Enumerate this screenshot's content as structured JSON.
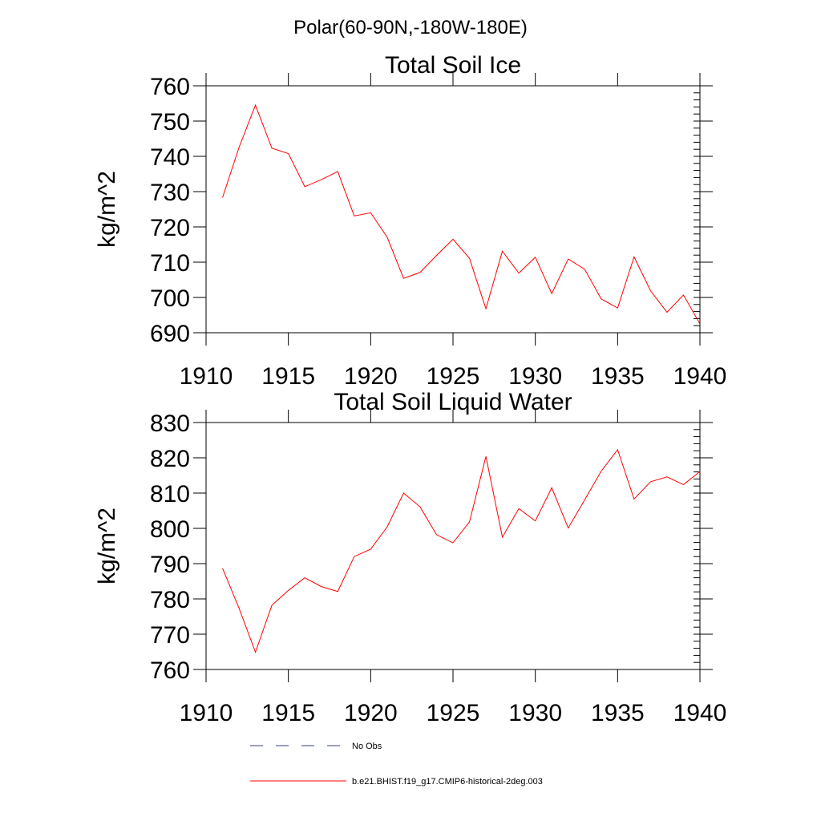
{
  "suptitle": "Polar(60-90N,-180W-180E)",
  "colors": {
    "series": "#ff0000",
    "axes": "#000000",
    "obs": "#3a3f8a"
  },
  "chart_data": [
    {
      "type": "line",
      "title": "Total Soil Ice",
      "ylabel": "kg/m^2",
      "xlabel": "",
      "xlim": [
        1910,
        1940
      ],
      "ylim": [
        690,
        760
      ],
      "xticks": [
        1910,
        1915,
        1920,
        1925,
        1930,
        1935,
        1940
      ],
      "yticks": [
        690,
        700,
        710,
        720,
        730,
        740,
        750,
        760
      ],
      "grid": false,
      "series": [
        {
          "name": "b.e21.BHIST.f19_g17.CMIP6-historical-2deg.003",
          "x": [
            1911,
            1912,
            1913,
            1914,
            1915,
            1916,
            1917,
            1918,
            1919,
            1920,
            1921,
            1922,
            1923,
            1924,
            1925,
            1926,
            1927,
            1928,
            1929,
            1930,
            1931,
            1932,
            1933,
            1934,
            1935,
            1936,
            1937,
            1938,
            1939,
            1940
          ],
          "y": [
            728.3,
            742.5,
            754.5,
            742.3,
            740.8,
            731.4,
            733.4,
            735.7,
            723.1,
            724.0,
            717.1,
            705.4,
            707.1,
            711.9,
            716.5,
            711.1,
            696.8,
            713.1,
            706.9,
            711.4,
            701.1,
            710.9,
            708.0,
            699.6,
            697.0,
            711.5,
            701.9,
            695.8,
            700.7,
            692.5
          ]
        }
      ]
    },
    {
      "type": "line",
      "title": "Total Soil Liquid Water",
      "ylabel": "kg/m^2",
      "xlabel": "",
      "xlim": [
        1910,
        1940
      ],
      "ylim": [
        760,
        830
      ],
      "xticks": [
        1910,
        1915,
        1920,
        1925,
        1930,
        1935,
        1940
      ],
      "yticks": [
        760,
        770,
        780,
        790,
        800,
        810,
        820,
        830
      ],
      "grid": false,
      "series": [
        {
          "name": "b.e21.BHIST.f19_g17.CMIP6-historical-2deg.003",
          "x": [
            1911,
            1912,
            1913,
            1914,
            1915,
            1916,
            1917,
            1918,
            1919,
            1920,
            1921,
            1922,
            1923,
            1924,
            1925,
            1926,
            1927,
            1928,
            1929,
            1930,
            1931,
            1932,
            1933,
            1934,
            1935,
            1936,
            1937,
            1938,
            1939,
            1940
          ],
          "y": [
            788.7,
            777.4,
            764.9,
            778.2,
            782.4,
            786.0,
            783.5,
            782.1,
            792.0,
            794.1,
            800.4,
            810.0,
            806.1,
            798.2,
            795.9,
            801.8,
            820.4,
            797.5,
            805.6,
            802.1,
            811.5,
            800.1,
            808.1,
            816.2,
            822.3,
            808.3,
            813.2,
            814.6,
            812.4,
            816.1
          ]
        }
      ]
    }
  ],
  "legend": {
    "placement": "bottom-center",
    "entries": [
      {
        "label": "No Obs",
        "style": "dashed"
      },
      {
        "label": "b.e21.BHIST.f19_g17.CMIP6-historical-2deg.003",
        "style": "solid"
      }
    ]
  }
}
